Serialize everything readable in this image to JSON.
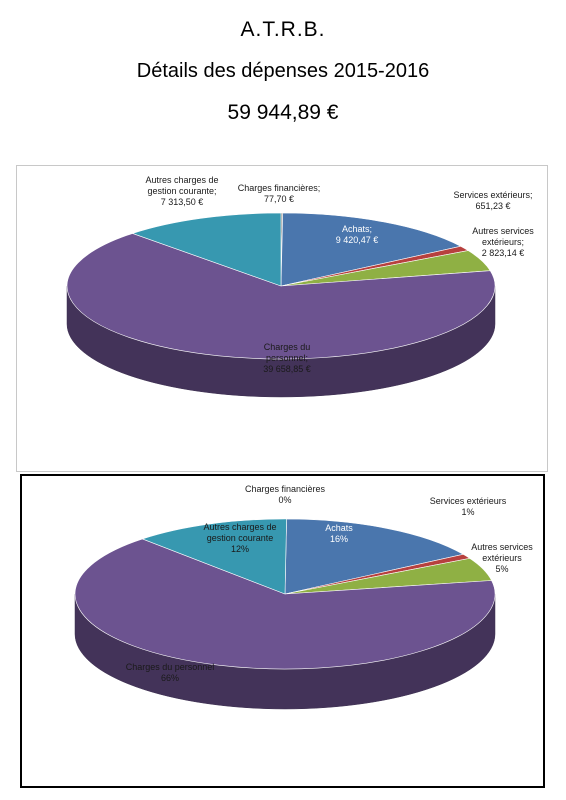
{
  "header": {
    "org": "A.T.R.B.",
    "subtitle": "Détails des dépenses 2015-2016",
    "total": "59 944,89 €"
  },
  "chart_data": [
    {
      "type": "pie",
      "variant": "3d",
      "labels_style": "value",
      "slices": [
        {
          "category": "Charges financières",
          "value": 77.7,
          "color": "#8a8a8a",
          "label_lines": [
            "Charges financières;",
            "77,70 €"
          ]
        },
        {
          "category": "Achats",
          "value": 9420.47,
          "color": "#4a76ad",
          "label_lines": [
            "Achats;",
            "9 420,47 €"
          ]
        },
        {
          "category": "Services extérieurs",
          "value": 651.23,
          "color": "#b7403e",
          "label_lines": [
            "Services extérieurs;",
            "651,23 €"
          ]
        },
        {
          "category": "Autres services extérieurs",
          "value": 2823.14,
          "color": "#8fb044",
          "label_lines": [
            "Autres services",
            "extérieurs;",
            "2 823,14 €"
          ]
        },
        {
          "category": "Charges du personnel",
          "value": 39658.85,
          "color": "#6c5390",
          "label_lines": [
            "Charges du",
            "personnel;",
            "39 658,85 €"
          ]
        },
        {
          "category": "Autres charges de gestion courante",
          "value": 7313.5,
          "color": "#3798b0",
          "label_lines": [
            "Autres charges de",
            "gestion courante;",
            "7 313,50 €"
          ]
        }
      ]
    },
    {
      "type": "pie",
      "variant": "3d",
      "labels_style": "percent",
      "slices": [
        {
          "category": "Charges financières",
          "value": 0,
          "color": "#8a8a8a",
          "label_lines": [
            "Charges financières",
            "0%"
          ]
        },
        {
          "category": "Achats",
          "value": 16,
          "color": "#4a76ad",
          "label_lines": [
            "Achats",
            "16%"
          ]
        },
        {
          "category": "Services extérieurs",
          "value": 1,
          "color": "#b7403e",
          "label_lines": [
            "Services extérieurs",
            "1%"
          ]
        },
        {
          "category": "Autres services extérieurs",
          "value": 5,
          "color": "#8fb044",
          "label_lines": [
            "Autres services",
            "extérieurs",
            "5%"
          ]
        },
        {
          "category": "Charges du personnel",
          "value": 66,
          "color": "#6c5390",
          "label_lines": [
            "Charges du personnel",
            "66%"
          ]
        },
        {
          "category": "Autres charges de gestion courante",
          "value": 12,
          "color": "#3798b0",
          "label_lines": [
            "Autres charges de",
            "gestion courante",
            "12%"
          ]
        }
      ]
    }
  ]
}
